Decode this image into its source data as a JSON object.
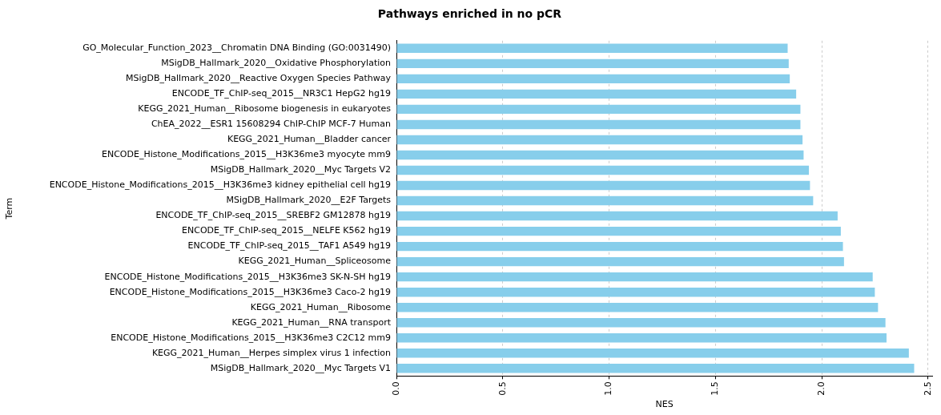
{
  "chart_data": {
    "type": "bar",
    "orientation": "horizontal",
    "title": "Pathways enriched in no pCR",
    "xlabel": "NES",
    "ylabel": "Term",
    "categories": [
      "GO_Molecular_Function_2023__Chromatin DNA Binding (GO:0031490)",
      "MSigDB_Hallmark_2020__Oxidative Phosphorylation",
      "MSigDB_Hallmark_2020__Reactive Oxygen Species Pathway",
      "ENCODE_TF_ChIP-seq_2015__NR3C1 HepG2 hg19",
      "KEGG_2021_Human__Ribosome biogenesis in eukaryotes",
      "ChEA_2022__ESR1 15608294 ChIP-ChIP MCF-7 Human",
      "KEGG_2021_Human__Bladder cancer",
      "ENCODE_Histone_Modifications_2015__H3K36me3 myocyte mm9",
      "MSigDB_Hallmark_2020__Myc Targets V2",
      "ENCODE_Histone_Modifications_2015__H3K36me3 kidney epithelial cell hg19",
      "MSigDB_Hallmark_2020__E2F Targets",
      "ENCODE_TF_ChIP-seq_2015__SREBF2 GM12878 hg19",
      "ENCODE_TF_ChIP-seq_2015__NELFE K562 hg19",
      "ENCODE_TF_ChIP-seq_2015__TAF1 A549 hg19",
      "KEGG_2021_Human__Spliceosome",
      "ENCODE_Histone_Modifications_2015__H3K36me3 SK-N-SH hg19",
      "ENCODE_Histone_Modifications_2015__H3K36me3 Caco-2 hg19",
      "KEGG_2021_Human__Ribosome",
      "KEGG_2021_Human__RNA transport",
      "ENCODE_Histone_Modifications_2015__H3K36me3 C2C12 mm9",
      "KEGG_2021_Human__Herpes simplex virus 1 infection",
      "MSigDB_Hallmark_2020__Myc Targets V1"
    ],
    "values": [
      1.84,
      1.845,
      1.85,
      1.88,
      1.9,
      1.9,
      1.91,
      1.915,
      1.94,
      1.945,
      1.96,
      2.075,
      2.09,
      2.1,
      2.105,
      2.24,
      2.25,
      2.265,
      2.3,
      2.305,
      2.41,
      2.435
    ],
    "color": "#87ceeb",
    "xlim": [
      0,
      2.52
    ],
    "xticks": [
      {
        "value": 0,
        "label": "0.0"
      },
      0.5,
      {
        "value": 1,
        "label": "1.0"
      },
      1.5,
      {
        "value": 2,
        "label": "2.0"
      },
      2.5
    ],
    "grid": "x",
    "line_style": "dashed"
  }
}
